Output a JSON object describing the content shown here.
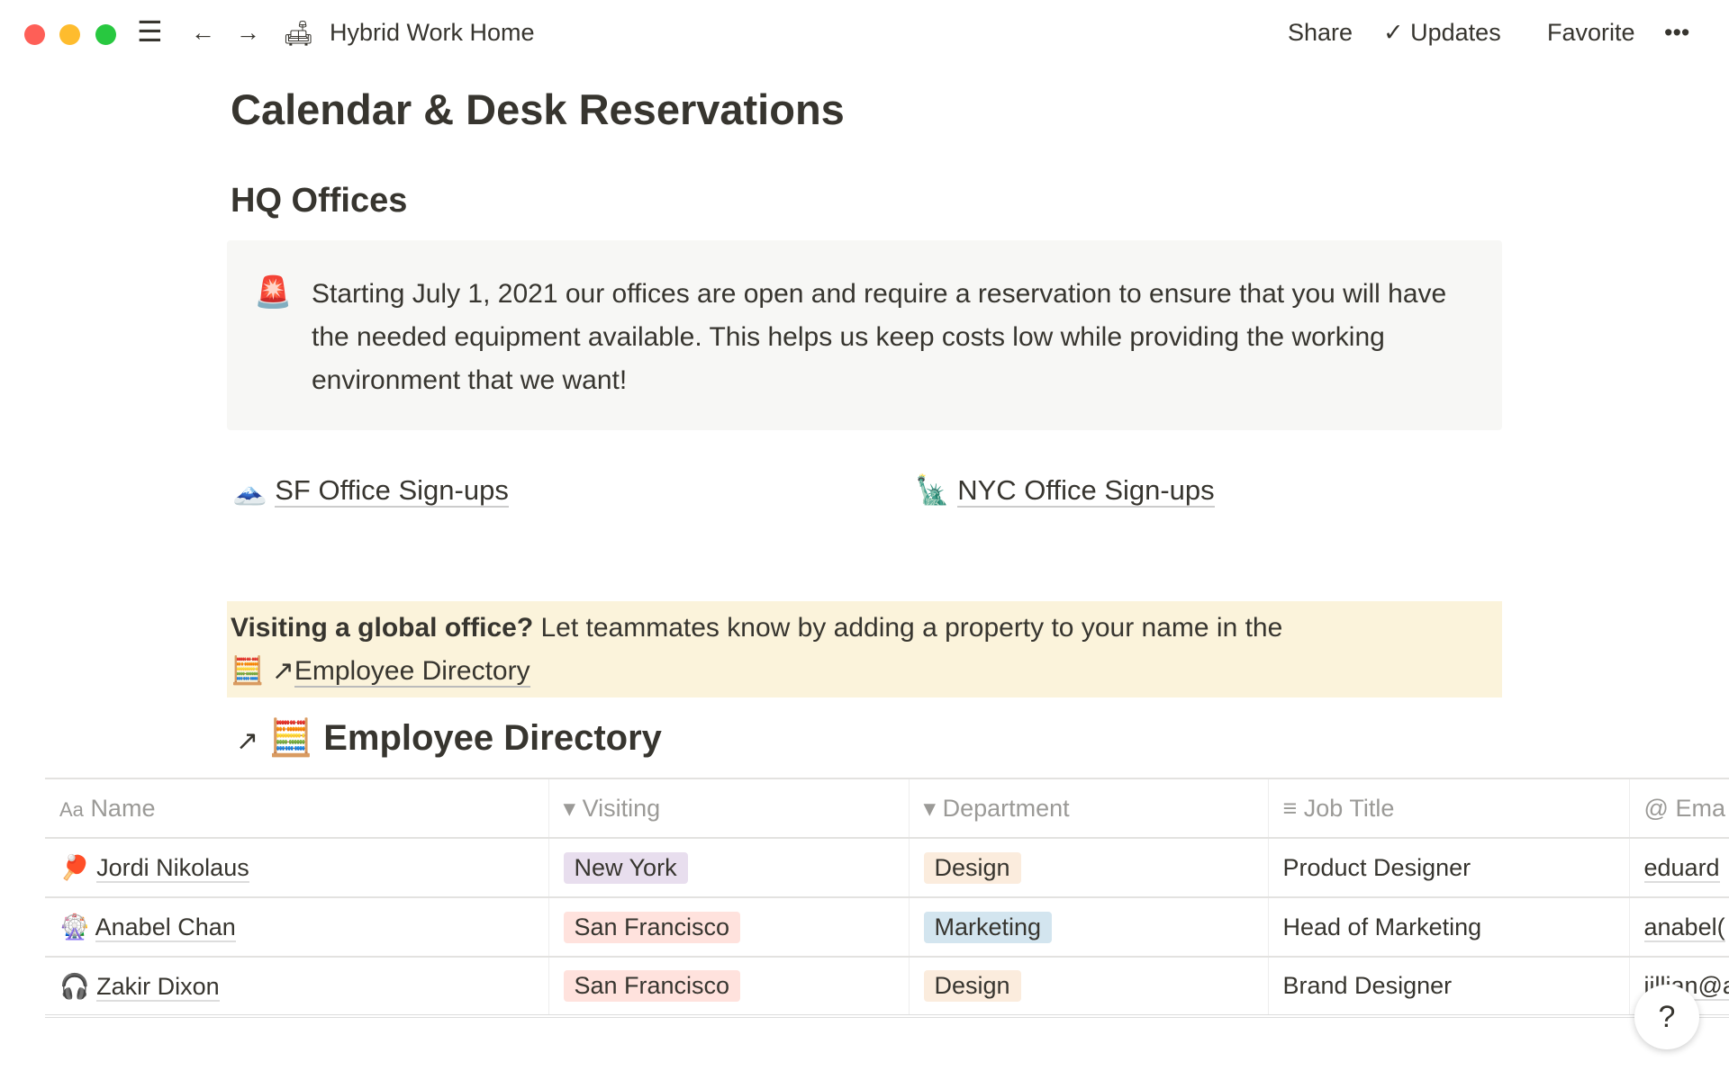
{
  "topbar": {
    "breadcrumb_icon": "couch-emoji",
    "breadcrumb": "Hybrid Work Home",
    "share": "Share",
    "updates": "Updates",
    "favorite": "Favorite",
    "more": "•••"
  },
  "page": {
    "title": "Calendar & Desk Reservations",
    "section": "HQ Offices"
  },
  "callout": {
    "icon": "🚨",
    "text": "Starting July 1, 2021 our offices are open and require a reservation to ensure that you will have the needed equipment available. This helps us keep costs low while providing the working environment that we want!"
  },
  "links": [
    {
      "icon": "🗻",
      "label": "SF Office Sign-ups"
    },
    {
      "icon": "🗽",
      "label": "NYC Office Sign-ups"
    }
  ],
  "notice": {
    "bold": "Visiting a global office?",
    "text": " Let teammates know by adding a property to your name in the",
    "icon": "🧮",
    "arrow": "↗",
    "link": "Employee Directory"
  },
  "database": {
    "arrow": "↗",
    "icon": "🧮",
    "title": "Employee Directory",
    "columns": [
      {
        "icon": "Aa",
        "label": "Name"
      },
      {
        "icon": "▾",
        "label": "Visiting"
      },
      {
        "icon": "▾",
        "label": "Department"
      },
      {
        "icon": "≡",
        "label": "Job Title"
      },
      {
        "icon": "@",
        "label": "Ema"
      }
    ],
    "rows": [
      {
        "icon": "🏓",
        "name": "Jordi Nikolaus",
        "visiting": "New York",
        "visiting_color": "#e8deee",
        "department": "Design",
        "department_color": "#fbecdd",
        "job": "Product Designer",
        "email": "eduard"
      },
      {
        "icon": "🎡",
        "name": "Anabel Chan",
        "visiting": "San Francisco",
        "visiting_color": "#ffe2dd",
        "department": "Marketing",
        "department_color": "#d3e5ef",
        "job": "Head of Marketing",
        "email": "anabel("
      },
      {
        "icon": "🎧",
        "name": "Zakir Dixon",
        "visiting": "San Francisco",
        "visiting_color": "#ffe2dd",
        "department": "Design",
        "department_color": "#fbecdd",
        "job": "Brand Designer",
        "email": "jillian@a"
      }
    ]
  },
  "help": "?"
}
